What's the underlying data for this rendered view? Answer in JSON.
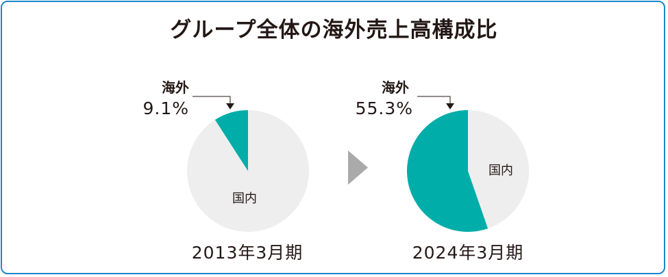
{
  "title": "グループ全体の海外売上高構成比",
  "colors": {
    "overseas": "#00ada9",
    "domestic": "#eeeeee",
    "arrow": "#aaaaaa",
    "frame": "#1a86c9"
  },
  "chart_data": [
    {
      "type": "pie",
      "title": "2013年3月期",
      "slices": [
        {
          "label": "海外",
          "value_label": "9.1%",
          "value": 9.1
        },
        {
          "label": "国内"
        }
      ]
    },
    {
      "type": "pie",
      "title": "2024年3月期",
      "slices": [
        {
          "label": "海外",
          "value_label": "55.3%",
          "value": 55.3
        },
        {
          "label": "国内"
        }
      ]
    }
  ]
}
